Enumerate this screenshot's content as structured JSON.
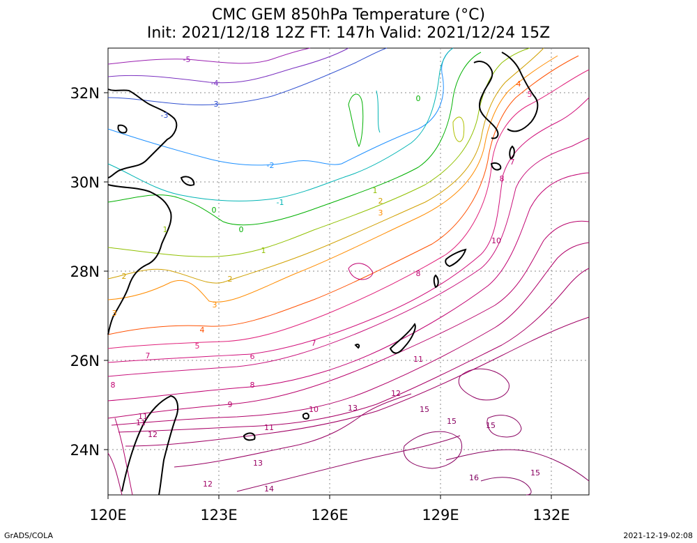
{
  "title": {
    "line1": "CMC GEM 850hPa Temperature (°C)",
    "line2": "Init: 2021/12/18 12Z  FT: 147h  Valid: 2021/12/24 15Z"
  },
  "axes": {
    "lon_labels": [
      "120E",
      "123E",
      "126E",
      "129E",
      "132E"
    ],
    "lat_labels": [
      "32N",
      "30N",
      "28N",
      "26N",
      "24N"
    ],
    "lon_range": [
      120,
      133
    ],
    "lat_range": [
      23,
      33
    ]
  },
  "contour_labels": [
    "-5",
    "-4",
    "-3",
    "-3",
    "-2",
    "-1",
    "0",
    "0",
    "0",
    "1",
    "1",
    "1",
    "2",
    "2",
    "2",
    "3",
    "3",
    "3",
    "4",
    "4",
    "5",
    "5",
    "6",
    "7",
    "7",
    "7",
    "8",
    "8",
    "8",
    "8",
    "9",
    "10",
    "10",
    "11",
    "11",
    "11",
    "11",
    "12",
    "12",
    "12",
    "13",
    "13",
    "14",
    "15",
    "15",
    "15",
    "15",
    "16"
  ],
  "footer": {
    "left": "GrADS/COLA",
    "right": "2021-12-19-02:08"
  },
  "colors": {
    "cold": "#6a0dad",
    "cool": "#1e90ff",
    "mild": "#00c000",
    "warm": "#ff8c00",
    "hot": "#e0007a",
    "coast": "#000000"
  }
}
